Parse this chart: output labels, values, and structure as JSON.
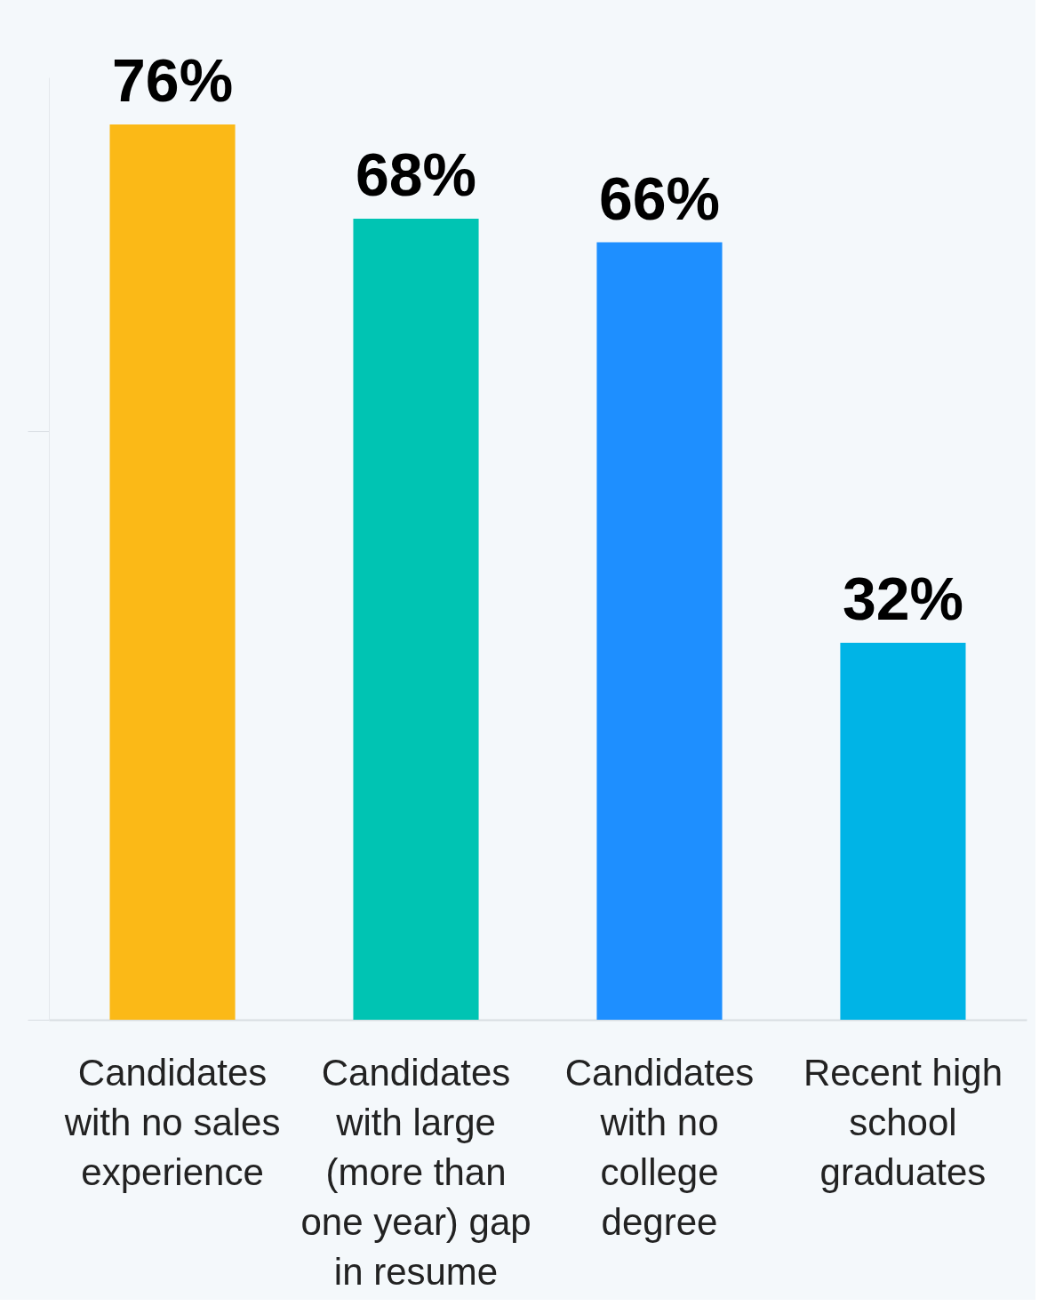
{
  "chart_data": {
    "type": "bar",
    "categories": [
      "Candidates with no sales experience",
      "Candidates with large (more than one year) gap in resume",
      "Candidates with no college degree",
      "Recent high school graduates"
    ],
    "values": [
      76,
      68,
      66,
      32
    ],
    "value_labels": [
      "76%",
      "68%",
      "66%",
      "32%"
    ],
    "colors": [
      "#fbb917",
      "#00c4b3",
      "#1e8fff",
      "#00b4e6"
    ],
    "tick_labels": "x",
    "grid": false
  }
}
